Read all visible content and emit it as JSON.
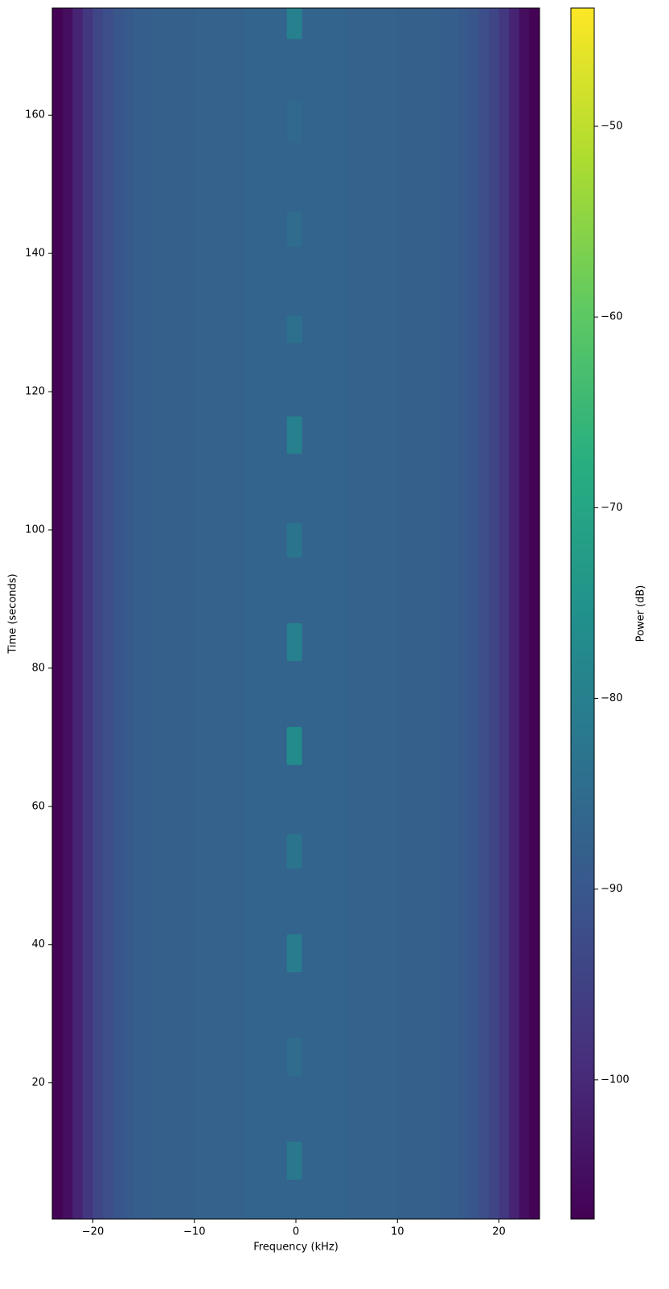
{
  "chart_data": {
    "type": "spectrogram",
    "colormap": "viridis",
    "xlabel": "Frequency (kHz)",
    "ylabel": "Time (seconds)",
    "colorbar_label": "Power (dB)",
    "xlim": [
      -24,
      24
    ],
    "ylim": [
      0.3,
      175.5
    ],
    "clim": [
      -107.3,
      -43.8
    ],
    "xticks": [
      {
        "value": -20,
        "label": "−20"
      },
      {
        "value": -10,
        "label": "−10"
      },
      0,
      10,
      20
    ],
    "yticks": [
      20,
      40,
      60,
      80,
      100,
      120,
      140,
      160
    ],
    "cticks": [
      {
        "value": -100,
        "label": "−100"
      },
      {
        "value": -90,
        "label": "−90"
      },
      {
        "value": -80,
        "label": "−80"
      },
      {
        "value": -70,
        "label": "−70"
      },
      {
        "value": -60,
        "label": "−60"
      },
      {
        "value": -50,
        "label": "−50"
      }
    ],
    "freq_bins": [
      -24,
      -23,
      -22,
      -21,
      -20,
      -19,
      -18,
      -17,
      -16,
      -14,
      -10,
      -5,
      0,
      5,
      10,
      14,
      16,
      17,
      18,
      19,
      20,
      21,
      22,
      23,
      24
    ],
    "profile": [
      -107,
      -105,
      -101,
      -97,
      -94,
      -92,
      -90.5,
      -89.5,
      -88.5,
      -88,
      -87.5,
      -87,
      -87,
      -87.5,
      -88,
      -88.5,
      -89.5,
      -90.5,
      -92,
      -94,
      -97,
      -101,
      -105,
      -107
    ],
    "burst_freq": [
      -0.9,
      0.6
    ],
    "bursts": {
      "start": [
        6,
        21,
        36,
        51,
        66,
        81,
        96,
        111,
        127,
        141,
        156,
        171
      ],
      "end": [
        11.5,
        26.5,
        41.5,
        56,
        71.5,
        86.5,
        101,
        116.4,
        131,
        146,
        162,
        175.5
      ],
      "values": [
        -82,
        -85,
        -81,
        -83,
        -77,
        -80,
        -83,
        -80,
        -84,
        -85,
        -86,
        -80
      ]
    }
  }
}
